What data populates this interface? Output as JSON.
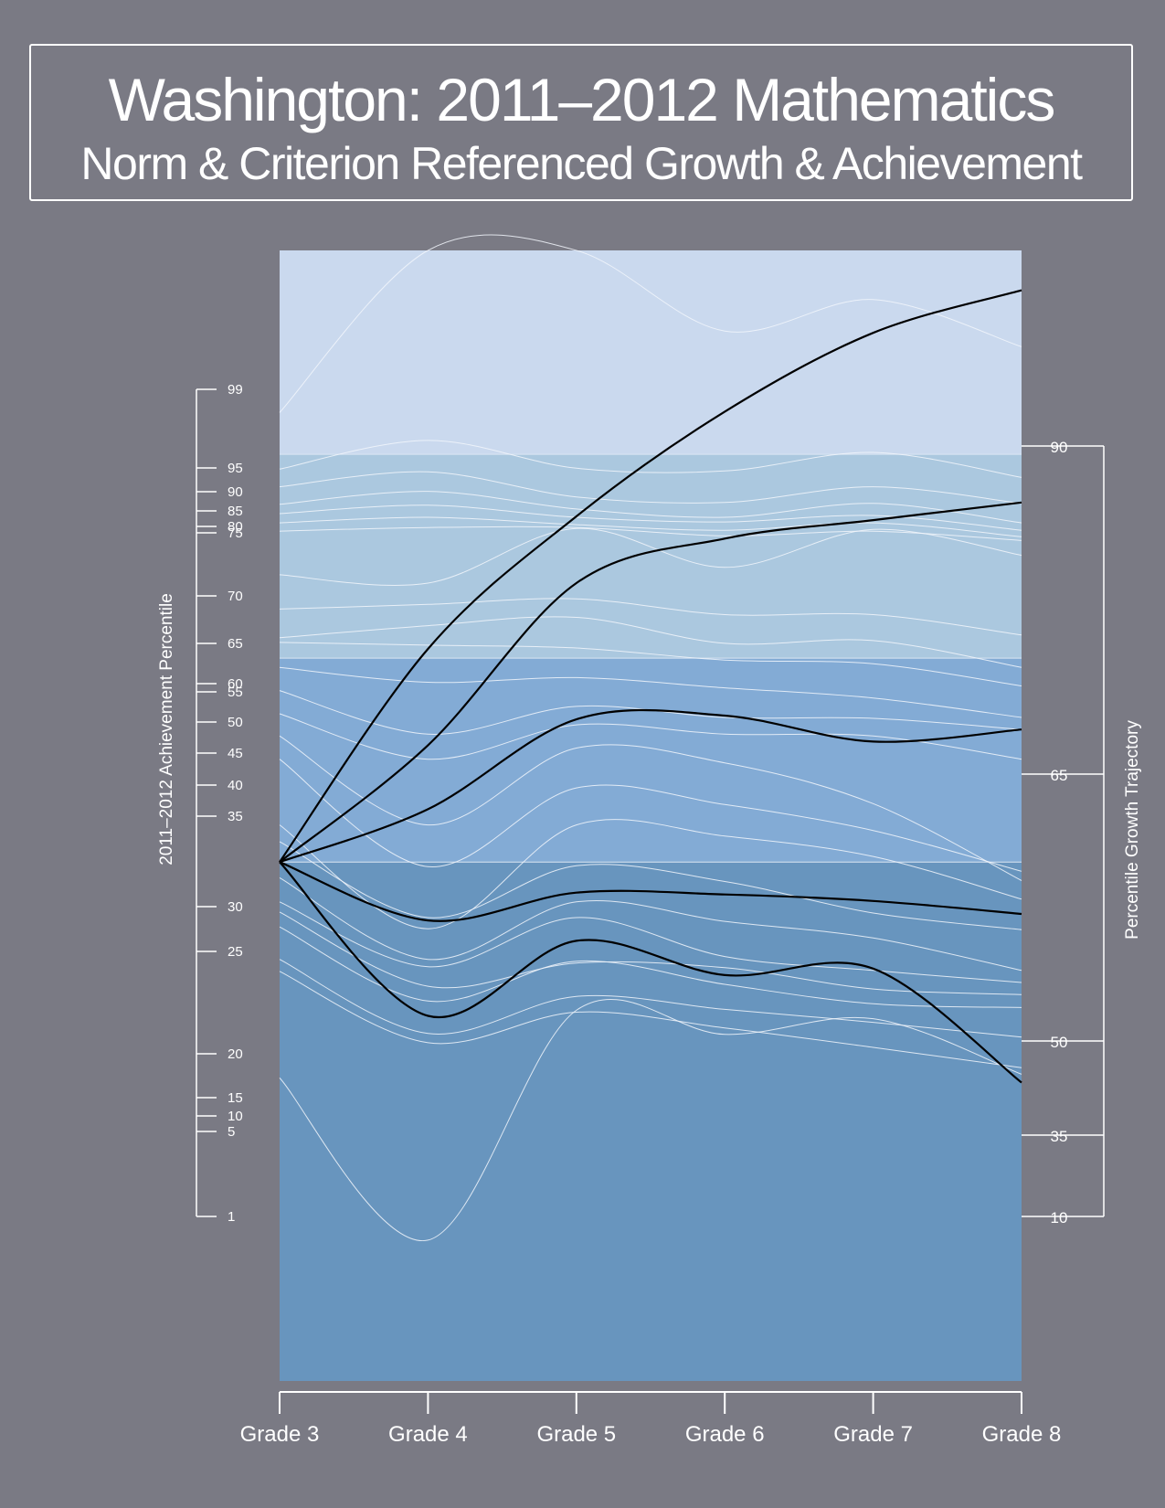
{
  "header": {
    "title": "Washington: 2011–2012 Mathematics",
    "subtitle": "Norm & Criterion Referenced Growth & Achievement"
  },
  "colors": {
    "background": "#7a7a84",
    "band_top": "#cad9ee",
    "band_upper_mid": "#abc8df",
    "band_lower_mid": "#83abd5",
    "band_bottom": "#6895be",
    "percentile_curve": "#f2f6fb",
    "trajectory": "#000000",
    "text": "#ffffff"
  },
  "chart_data": {
    "type": "line",
    "x": [
      "Grade 3",
      "Grade 4",
      "Grade 5",
      "Grade 6",
      "Grade 7",
      "Grade 8"
    ],
    "left_axis": {
      "label": "2011–2012 Achievement Percentile",
      "ticks": [
        "1",
        "5",
        "10",
        "15",
        "20",
        "25",
        "30",
        "35",
        "40",
        "45",
        "50",
        "55",
        "60",
        "65",
        "70",
        "75",
        "80",
        "85",
        "90",
        "95",
        "99"
      ]
    },
    "right_axis": {
      "label": "Percentile Growth Trajectory",
      "ticks": [
        "10",
        "35",
        "50",
        "65",
        "90"
      ]
    },
    "bands_scale_scores": [
      {
        "from": 0,
        "to": 56
      },
      {
        "from": 56,
        "to": 78
      },
      {
        "from": 78,
        "to": 100
      },
      {
        "from": 100,
        "to": 122
      }
    ],
    "scale_ylim": [
      0,
      122
    ],
    "percentile_curves": [
      [
        104.5,
        122.0,
        122.0,
        113.3,
        116.7,
        111.6
      ],
      [
        98.4,
        101.5,
        98.5,
        98.2,
        100.2,
        97.5
      ],
      [
        96.5,
        98.1,
        95.4,
        94.8,
        96.5,
        94.7
      ],
      [
        94.6,
        96.0,
        94.1,
        93.2,
        94.7,
        92.6
      ],
      [
        93.6,
        94.5,
        93.2,
        92.7,
        93.4,
        91.8
      ],
      [
        92.6,
        93.2,
        92.4,
        91.8,
        92.6,
        91.1
      ],
      [
        91.7,
        92.1,
        92.1,
        91.2,
        91.7,
        90.7
      ],
      [
        87.0,
        86.1,
        92.0,
        87.8,
        91.9,
        89.1
      ],
      [
        83.3,
        83.8,
        84.4,
        82.7,
        82.7,
        80.5
      ],
      [
        80.2,
        81.5,
        82.4,
        79.6,
        79.9,
        77.0
      ],
      [
        79.7,
        79.4,
        79.1,
        77.8,
        77.4,
        75.0
      ],
      [
        77.0,
        75.4,
        75.9,
        74.8,
        73.7,
        71.6
      ],
      [
        74.5,
        69.8,
        72.8,
        71.6,
        71.5,
        70.3
      ],
      [
        72.0,
        67.1,
        70.8,
        69.8,
        69.6,
        67.1
      ],
      [
        69.6,
        60.0,
        68.3,
        66.7,
        62.3,
        54.0
      ],
      [
        67.1,
        55.5,
        64.0,
        62.2,
        59.4,
        55.0
      ],
      [
        60.0,
        48.8,
        60.0,
        58.8,
        56.6,
        52.0
      ],
      [
        58.2,
        50.0,
        55.6,
        53.9,
        50.5,
        48.7
      ],
      [
        54.3,
        45.5,
        51.7,
        49.6,
        47.8,
        44.3
      ],
      [
        51.7,
        44.7,
        50.0,
        45.8,
        44.3,
        43.0
      ],
      [
        50.6,
        42.6,
        45.1,
        44.6,
        42.3,
        41.7
      ],
      [
        49.0,
        41.0,
        45.3,
        42.8,
        40.7,
        40.3
      ],
      [
        45.5,
        37.5,
        41.5,
        40.1,
        38.7,
        37.1
      ],
      [
        44.2,
        36.5,
        39.8,
        38.1,
        36.0,
        33.8
      ],
      [
        32.7,
        15.2,
        40.0,
        37.4,
        39.1,
        33.1
      ]
    ],
    "series": [
      {
        "name": "90",
        "values": [
          56.0,
          79.0,
          93.3,
          104.6,
          113.1,
          117.7
        ]
      },
      {
        "name": "65",
        "values": [
          56.0,
          68.6,
          86.1,
          90.9,
          92.9,
          94.8
        ]
      },
      {
        "name": "50",
        "values": [
          56.0,
          61.7,
          71.4,
          71.8,
          69.0,
          70.3
        ]
      },
      {
        "name": "35",
        "values": [
          56.0,
          49.7,
          52.7,
          52.5,
          51.8,
          50.4
        ]
      },
      {
        "name": "10",
        "values": [
          56.0,
          39.4,
          47.5,
          43.8,
          44.5,
          32.2
        ]
      }
    ]
  }
}
